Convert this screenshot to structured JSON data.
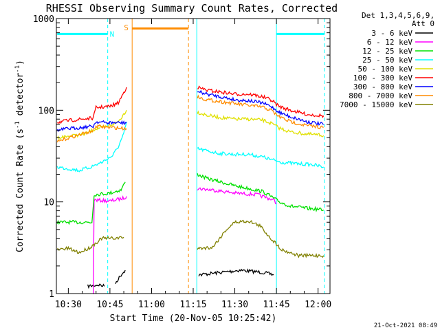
{
  "chart_data": {
    "type": "line",
    "title": "RHESSI Observing Summary Count Rates, Corrected",
    "xlabel": "Start Time (20-Nov-05 10:25:42)",
    "ylabel_main": "Corrected Count Rate (s",
    "ylabel_sup1": "-1",
    "ylabel_mid": " detector",
    "ylabel_sup2": "-1",
    "ylabel_end": ")",
    "yscale": "log",
    "ylim": [
      1,
      1000
    ],
    "xlim_minutes": [
      25.7,
      124.3
    ],
    "x_ticks": [
      {
        "label": "10:30",
        "min": 30
      },
      {
        "label": "10:45",
        "min": 45
      },
      {
        "label": "11:00",
        "min": 60
      },
      {
        "label": "11:15",
        "min": 75
      },
      {
        "label": "11:30",
        "min": 90
      },
      {
        "label": "11:45",
        "min": 105
      },
      {
        "label": "12:00",
        "min": 120
      }
    ],
    "y_ticks": [
      {
        "label": "1",
        "value": 1
      },
      {
        "label": "10",
        "value": 10
      },
      {
        "label": "100",
        "value": 100
      },
      {
        "label": "1000",
        "value": 1000
      }
    ],
    "legend_header": [
      "Det 1,3,4,5,6,9,",
      "Att 0"
    ],
    "series": [
      {
        "name": "3 - 6 keV",
        "color": "#000000",
        "segments": [
          [
            [
              37,
              1.2
            ],
            [
              41,
              1.25
            ],
            [
              43,
              1.2
            ]
          ],
          [
            [
              47,
              1.3
            ],
            [
              49,
              1.6
            ],
            [
              50.5,
              1.8
            ]
          ],
          [
            [
              77,
              1.6
            ],
            [
              85,
              1.7
            ],
            [
              92,
              1.8
            ],
            [
              100,
              1.7
            ],
            [
              104,
              1.6
            ]
          ]
        ]
      },
      {
        "name": "6 - 12 keV",
        "color": "#ff00ff",
        "segments": [
          [
            [
              39,
              1.0
            ],
            [
              39.3,
              10.5
            ],
            [
              45,
              10.2
            ],
            [
              50,
              11.0
            ],
            [
              51,
              11.5
            ]
          ],
          [
            [
              76.5,
              14
            ],
            [
              82,
              13.5
            ],
            [
              90,
              12.5
            ],
            [
              98,
              12
            ],
            [
              104,
              10.5
            ],
            [
              105,
              9.5
            ]
          ]
        ]
      },
      {
        "name": "12 - 25 keV",
        "color": "#00e000",
        "segments": [
          [
            [
              26,
              6.0
            ],
            [
              38.5,
              6.0
            ],
            [
              39.3,
              12.0
            ],
            [
              45,
              12.5
            ],
            [
              49,
              13.5
            ],
            [
              50.5,
              16.5
            ]
          ],
          [
            [
              76.5,
              20
            ],
            [
              80,
              18
            ],
            [
              85,
              16.5
            ],
            [
              90,
              15
            ],
            [
              95,
              14
            ],
            [
              100,
              13
            ],
            [
              103,
              11.5
            ],
            [
              106,
              10
            ],
            [
              110,
              9
            ],
            [
              116,
              8.5
            ],
            [
              122,
              8.2
            ]
          ]
        ]
      },
      {
        "name": "25 - 50 keV",
        "color": "#00ffff",
        "segments": [
          [
            [
              26,
              24
            ],
            [
              30,
              23
            ],
            [
              34,
              22
            ],
            [
              38,
              24
            ],
            [
              42,
              27
            ],
            [
              46,
              32
            ],
            [
              48,
              40
            ],
            [
              50,
              55
            ],
            [
              51,
              75
            ]
          ],
          [
            [
              76.5,
              38
            ],
            [
              80,
              36
            ],
            [
              84,
              34
            ],
            [
              90,
              33
            ],
            [
              95,
              33
            ],
            [
              100,
              31
            ],
            [
              103,
              29
            ],
            [
              107,
              27
            ],
            [
              113,
              26
            ],
            [
              118,
              25.5
            ],
            [
              122,
              24
            ]
          ]
        ]
      },
      {
        "name": "50 - 100 keV",
        "color": "#e0e000",
        "segments": [
          [
            [
              26,
              50
            ],
            [
              30,
              52
            ],
            [
              36,
              55
            ],
            [
              40,
              63
            ],
            [
              44,
              66
            ],
            [
              48,
              75
            ],
            [
              51,
              100
            ]
          ],
          [
            [
              76.5,
              95
            ],
            [
              80,
              88
            ],
            [
              85,
              83
            ],
            [
              90,
              80
            ],
            [
              95,
              80
            ],
            [
              100,
              78
            ],
            [
              103,
              72
            ],
            [
              106,
              64
            ],
            [
              110,
              58
            ],
            [
              116,
              55
            ],
            [
              122,
              53
            ]
          ]
        ]
      },
      {
        "name": "100 - 300 keV",
        "color": "#ff0000",
        "segments": [
          [
            [
              26,
              74
            ],
            [
              30,
              77
            ],
            [
              35,
              80
            ],
            [
              39,
              82
            ],
            [
              40,
              107
            ],
            [
              45,
              110
            ],
            [
              48,
              120
            ],
            [
              51,
              178
            ]
          ],
          [
            [
              76.5,
              178
            ],
            [
              80,
              165
            ],
            [
              85,
              158
            ],
            [
              90,
              150
            ],
            [
              95,
              150
            ],
            [
              100,
              140
            ],
            [
              103,
              130
            ],
            [
              106,
              110
            ],
            [
              110,
              100
            ],
            [
              116,
              90
            ],
            [
              122,
              87
            ]
          ]
        ]
      },
      {
        "name": "300 - 800 keV",
        "color": "#0000ff",
        "segments": [
          [
            [
              26,
              60
            ],
            [
              30,
              63
            ],
            [
              35,
              65
            ],
            [
              39,
              67
            ],
            [
              40,
              75
            ],
            [
              44,
              73
            ],
            [
              48,
              73
            ],
            [
              51,
              73
            ]
          ],
          [
            [
              76.5,
              160
            ],
            [
              80,
              150
            ],
            [
              85,
              140
            ],
            [
              90,
              130
            ],
            [
              95,
              127
            ],
            [
              100,
              120
            ],
            [
              103,
              110
            ],
            [
              106,
              95
            ],
            [
              110,
              85
            ],
            [
              116,
              75
            ],
            [
              122,
              70
            ]
          ]
        ]
      },
      {
        "name": "800 - 7000 keV",
        "color": "#ff8c00",
        "segments": [
          [
            [
              26,
              45
            ],
            [
              30,
              50
            ],
            [
              35,
              55
            ],
            [
              39,
              60
            ],
            [
              40,
              67
            ],
            [
              44,
              65
            ],
            [
              48,
              64
            ],
            [
              51,
              63
            ]
          ],
          [
            [
              76.5,
              140
            ],
            [
              80,
              130
            ],
            [
              85,
              124
            ],
            [
              90,
              118
            ],
            [
              95,
              113
            ],
            [
              100,
              108
            ],
            [
              103,
              100
            ],
            [
              106,
              85
            ],
            [
              110,
              75
            ],
            [
              116,
              68
            ],
            [
              122,
              65
            ]
          ]
        ]
      },
      {
        "name": "7000 - 15000 keV",
        "color": "#808000",
        "segments": [
          [
            [
              26,
              3.0
            ],
            [
              30,
              3.1
            ],
            [
              34,
              2.8
            ],
            [
              38,
              3.2
            ],
            [
              42,
              4.0
            ],
            [
              46,
              4.0
            ],
            [
              50,
              4.1
            ]
          ],
          [
            [
              76.5,
              3.1
            ],
            [
              82,
              3.2
            ],
            [
              87,
              5.0
            ],
            [
              90,
              6.0
            ],
            [
              95,
              6.2
            ],
            [
              99,
              5.5
            ],
            [
              103,
              4.0
            ],
            [
              107,
              3.0
            ],
            [
              113,
              2.6
            ],
            [
              122,
              2.6
            ]
          ]
        ]
      }
    ],
    "markers": [
      {
        "label": "N",
        "color": "#00ffff",
        "kind": "solid-bar",
        "x_start": 26,
        "x_end": 44.2,
        "value": 680,
        "line_style": "solid"
      },
      {
        "label": "",
        "color": "#00ffff",
        "kind": "dashed-vline",
        "x": 44.2
      },
      {
        "label": "",
        "color": "#00ffff",
        "kind": "solid-vline",
        "x": 105
      },
      {
        "label": "",
        "color": "#00ffff",
        "kind": "solid-bar",
        "x_start": 105,
        "x_end": 122.3,
        "value": 680
      },
      {
        "label": "",
        "color": "#00ffff",
        "kind": "dashed-vline",
        "x": 122.3
      },
      {
        "label": "",
        "color": "#00ffff",
        "kind": "solid-vline",
        "x": 76.3
      },
      {
        "label": "S",
        "color": "#ff8c00",
        "kind": "solid-vline",
        "x": 53
      },
      {
        "label": "",
        "color": "#ff8c00",
        "kind": "solid-bar",
        "x_start": 53,
        "x_end": 73.3,
        "value": 780
      },
      {
        "label": "",
        "color": "#ff8c00",
        "kind": "dashed-vline",
        "x": 73.3
      }
    ],
    "footer_date": "21-Oct-2021 08:49"
  }
}
